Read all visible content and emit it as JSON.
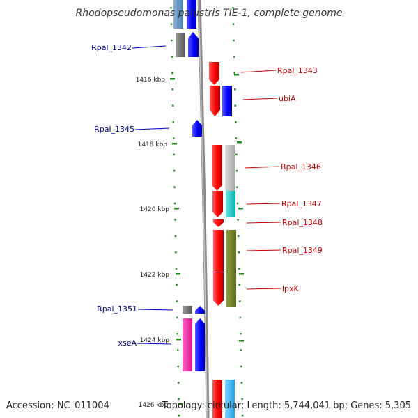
{
  "title": "Rhodopseudomonas palustris TIE-1, complete genome",
  "footer": {
    "accession": "Accession: NC_011004",
    "topology": "Topology: circular; Length: 5,744,041 bp; Genes: 5,305"
  },
  "colors": {
    "left_label": "#00008b",
    "right_label": "#cc0000",
    "tick": "#228b22",
    "backbone": "#888888"
  },
  "ruler": [
    {
      "label": "1416 kbp"
    },
    {
      "label": "1418 kbp"
    },
    {
      "label": "1420 kbp"
    },
    {
      "label": "1422 kbp"
    },
    {
      "label": "1424 kbp"
    },
    {
      "label": "1426 kbp"
    }
  ],
  "labels_left": [
    {
      "name": "rpal-1342-label",
      "text": "Rpal_1342"
    },
    {
      "name": "rpal-1345-label",
      "text": "Rpal_1345"
    },
    {
      "name": "rpal-1351-label",
      "text": "Rpal_1351"
    },
    {
      "name": "xsea-label",
      "text": "xseA"
    }
  ],
  "labels_right": [
    {
      "name": "rpal-1343-label",
      "text": "Rpal_1343"
    },
    {
      "name": "ubia-label",
      "text": "ubiA"
    },
    {
      "name": "rpal-1346-label",
      "text": "Rpal_1346"
    },
    {
      "name": "rpal-1347-label",
      "text": "Rpal_1347"
    },
    {
      "name": "rpal-1348-label",
      "text": "Rpal_1348"
    },
    {
      "name": "rpal-1349-label",
      "text": "Rpal_1349"
    },
    {
      "name": "lpxk-label",
      "text": "lpxK"
    }
  ]
}
